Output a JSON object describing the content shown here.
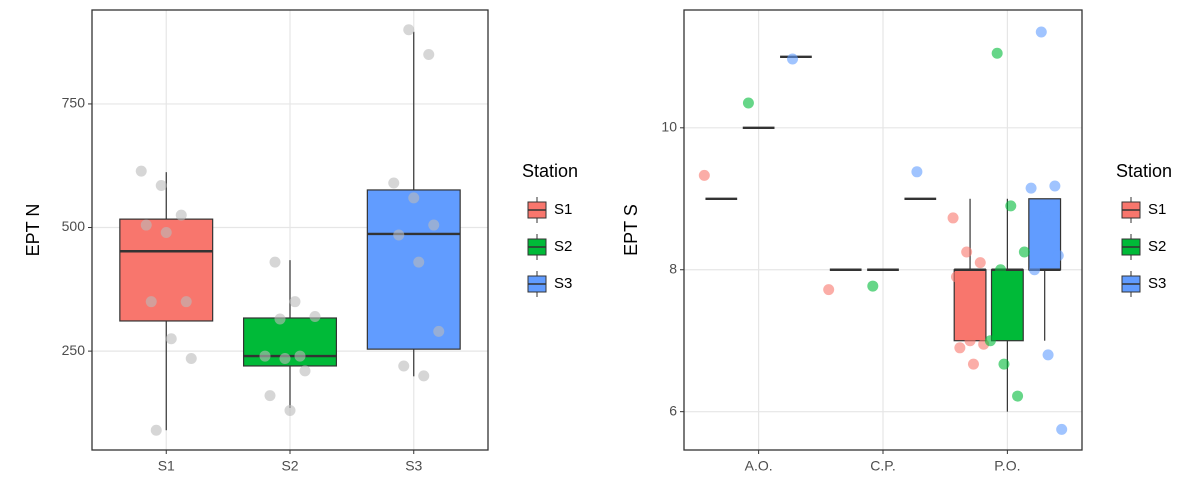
{
  "chart_data": [
    {
      "type": "box",
      "ylabel": "EPT N",
      "legend_title": "Station",
      "dodge": false,
      "point_color": "#bbbbbb",
      "categories": [
        "S1",
        "S2",
        "S3"
      ],
      "ylim": [
        50,
        940
      ],
      "yticks": [
        250,
        500,
        750
      ],
      "grid": true,
      "series": [
        {
          "name": "S1",
          "color": "#f8766d",
          "boxes": [
            {
              "min": 90,
              "q1": 311,
              "median": 452,
              "q3": 517,
              "max": 612
            },
            null,
            null
          ],
          "points": [
            [
              614,
              585,
              525,
              505,
              490,
              350,
              350,
              275,
              235,
              90
            ],
            [],
            []
          ]
        },
        {
          "name": "S2",
          "color": "#00ba38",
          "boxes": [
            null,
            {
              "min": 135,
              "q1": 220,
              "median": 240,
              "q3": 317,
              "max": 434
            },
            null
          ],
          "points": [
            [],
            [
              430,
              350,
              320,
              315,
              240,
              240,
              235,
              210,
              160,
              130
            ],
            []
          ]
        },
        {
          "name": "S3",
          "color": "#619cff",
          "boxes": [
            null,
            null,
            {
              "min": 199,
              "q1": 254,
              "median": 487,
              "q3": 576,
              "max": 896
            }
          ],
          "points": [
            [],
            [],
            [
              900,
              850,
              590,
              560,
              505,
              485,
              430,
              290,
              220,
              200
            ]
          ]
        }
      ]
    },
    {
      "type": "box",
      "ylabel": "EPT S",
      "legend_title": "Station",
      "dodge": true,
      "categories": [
        "A.O.",
        "C.P.",
        "P.O."
      ],
      "ylim": [
        5.46,
        11.66
      ],
      "yticks": [
        6,
        8,
        10
      ],
      "grid": true,
      "series": [
        {
          "name": "S1",
          "color": "#f8766d",
          "boxes": [
            {
              "min": 9,
              "q1": 9,
              "median": 9,
              "q3": 9,
              "max": 9
            },
            {
              "min": 8,
              "q1": 8,
              "median": 8,
              "q3": 8,
              "max": 8
            },
            {
              "min": 7,
              "q1": 7,
              "median": 8,
              "q3": 8,
              "max": 9
            }
          ],
          "points": [
            [
              9.33
            ],
            [
              7.72
            ],
            [
              8.73,
              8.25,
              8.1,
              7.9,
              7.0,
              6.95,
              6.9,
              6.67
            ]
          ]
        },
        {
          "name": "S2",
          "color": "#00ba38",
          "boxes": [
            {
              "min": 10,
              "q1": 10,
              "median": 10,
              "q3": 10,
              "max": 10
            },
            {
              "min": 8,
              "q1": 8,
              "median": 8,
              "q3": 8,
              "max": 8
            },
            {
              "min": 6,
              "q1": 7,
              "median": 8,
              "q3": 8,
              "max": 9
            }
          ],
          "points": [
            [
              10.35
            ],
            [
              7.77
            ],
            [
              11.05,
              8.9,
              8.25,
              8.0,
              7.75,
              7.0,
              6.67,
              6.22
            ]
          ]
        },
        {
          "name": "S3",
          "color": "#619cff",
          "boxes": [
            {
              "min": 11,
              "q1": 11,
              "median": 11,
              "q3": 11,
              "max": 11
            },
            {
              "min": 9,
              "q1": 9,
              "median": 9,
              "q3": 9,
              "max": 9
            },
            {
              "min": 7,
              "q1": 8,
              "median": 8,
              "q3": 9,
              "max": 9
            }
          ],
          "points": [
            [
              10.97
            ],
            [
              9.38
            ],
            [
              11.35,
              9.18,
              9.15,
              8.75,
              8.2,
              8.0,
              6.8,
              5.75
            ]
          ]
        }
      ]
    }
  ]
}
